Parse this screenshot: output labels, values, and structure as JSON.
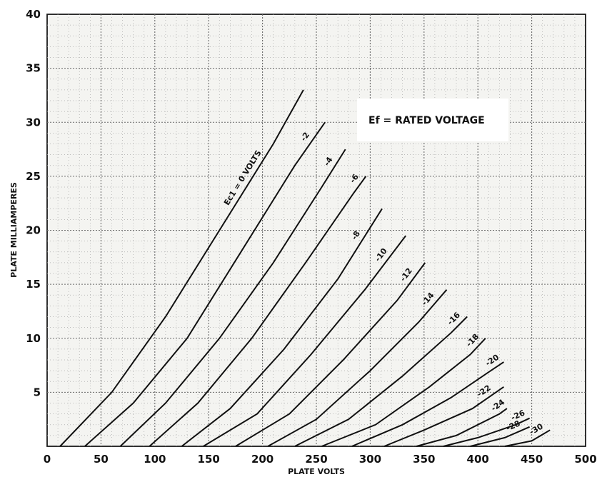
{
  "chart_data": {
    "type": "line",
    "title": "",
    "xlabel": "PLATE VOLTS",
    "ylabel": "PLATE MILLIAMPERES",
    "xlim": [
      0,
      500
    ],
    "ylim": [
      0,
      40
    ],
    "x_ticks": [
      0,
      50,
      100,
      150,
      200,
      250,
      300,
      350,
      400,
      450,
      500
    ],
    "y_ticks": [
      5,
      10,
      15,
      20,
      25,
      30,
      35,
      40
    ],
    "grid": true,
    "annotation": "Ef = RATED VOLTAGE",
    "series": [
      {
        "name": "Ec1 = 0 VOLTS",
        "label": "Ec1 = 0 VOLTS",
        "x": [
          12,
          60,
          110,
          160,
          210,
          238
        ],
        "y": [
          0,
          5,
          12,
          20,
          28,
          33
        ]
      },
      {
        "name": "-2",
        "label": "-2",
        "x": [
          35,
          80,
          130,
          180,
          230,
          258
        ],
        "y": [
          0,
          4,
          10,
          18,
          26,
          30
        ]
      },
      {
        "name": "-4",
        "label": "-4",
        "x": [
          68,
          110,
          160,
          210,
          255,
          277
        ],
        "y": [
          0,
          4,
          10,
          17,
          24,
          27.5
        ]
      },
      {
        "name": "-6",
        "label": "-6",
        "x": [
          95,
          140,
          190,
          240,
          285,
          296
        ],
        "y": [
          0,
          4,
          10,
          17,
          23.5,
          25
        ]
      },
      {
        "name": "-8",
        "label": "-8",
        "x": [
          125,
          170,
          220,
          270,
          311
        ],
        "y": [
          0,
          3.5,
          9,
          15.5,
          22
        ]
      },
      {
        "name": "-10",
        "label": "-10",
        "x": [
          145,
          195,
          245,
          295,
          333
        ],
        "y": [
          0,
          3,
          8.5,
          14.5,
          19.5
        ]
      },
      {
        "name": "-12",
        "label": "-12",
        "x": [
          175,
          225,
          275,
          325,
          351
        ],
        "y": [
          0,
          3,
          8,
          13.5,
          17
        ]
      },
      {
        "name": "-14",
        "label": "-14",
        "x": [
          205,
          250,
          300,
          345,
          371
        ],
        "y": [
          0,
          2.5,
          7,
          11.5,
          14.5
        ]
      },
      {
        "name": "-16",
        "label": "-16",
        "x": [
          230,
          280,
          330,
          375,
          390
        ],
        "y": [
          0,
          2.5,
          6.5,
          10.5,
          12
        ]
      },
      {
        "name": "-18",
        "label": "-18",
        "x": [
          255,
          305,
          355,
          393,
          407
        ],
        "y": [
          0,
          2,
          5.5,
          8.5,
          10
        ]
      },
      {
        "name": "-20",
        "label": "-20",
        "x": [
          283,
          330,
          375,
          412,
          424
        ],
        "y": [
          0,
          2,
          4.5,
          7,
          7.8
        ]
      },
      {
        "name": "-22",
        "label": "-22",
        "x": [
          313,
          350,
          395,
          424
        ],
        "y": [
          0,
          1.5,
          3.5,
          5.5
        ]
      },
      {
        "name": "-24",
        "label": "-24",
        "x": [
          343,
          380,
          420,
          427
        ],
        "y": [
          0,
          1,
          3,
          3.5
        ]
      },
      {
        "name": "-26",
        "label": "-26",
        "x": [
          368,
          400,
          435,
          448
        ],
        "y": [
          0,
          0.8,
          2,
          2.6
        ]
      },
      {
        "name": "-28",
        "label": "-28",
        "x": [
          393,
          425,
          448
        ],
        "y": [
          0,
          0.8,
          1.8
        ]
      },
      {
        "name": "-30",
        "label": "-30",
        "x": [
          425,
          450,
          467
        ],
        "y": [
          0,
          0.5,
          1.5
        ]
      }
    ]
  }
}
